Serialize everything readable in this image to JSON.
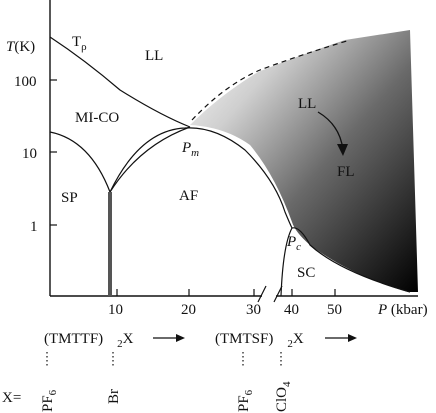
{
  "axes": {
    "y_label_var": "T",
    "y_label_unit": "(K)",
    "y_ticks": [
      "100",
      "10",
      "1"
    ],
    "x_label_var": "P",
    "x_label_unit": "(kbar)",
    "x_ticks": [
      "10",
      "20",
      "30",
      "40",
      "50"
    ]
  },
  "regions": {
    "t_rho": "T",
    "t_rho_sub": "ρ",
    "ll_left": "LL",
    "mi_co": "MI-CO",
    "sp": "SP",
    "af": "AF",
    "ll_right": "LL",
    "fl": "FL",
    "sc": "SC"
  },
  "points": {
    "pm_var": "P",
    "pm_sub": "m",
    "pc_var": "P",
    "pc_sub": "c"
  },
  "families": {
    "tmttf_name": "(TMTTF)",
    "tmttf_sub": "2",
    "tmttf_x": "X",
    "tmtsf_name": "(TMTSF)",
    "tmtsf_sub": "2",
    "tmtsf_x": "X"
  },
  "anions": {
    "prefix": "X=",
    "pf6_a": "PF",
    "pf6_a_sub": "6",
    "br": "Br",
    "pf6_b": "PF",
    "pf6_b_sub": "6",
    "clo4": "ClO",
    "clo4_sub": "4"
  }
}
